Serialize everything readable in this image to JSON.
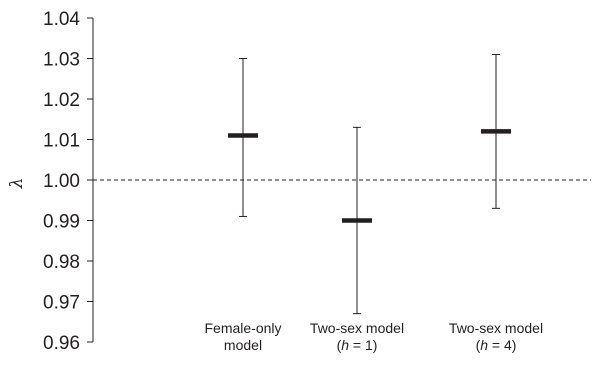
{
  "chart_data": {
    "type": "errorbar",
    "title": "",
    "ylabel": "λ",
    "xlabel": "",
    "ylim": [
      0.96,
      1.04
    ],
    "ytick_step": 0.01,
    "ytick_labels": [
      "0.96",
      "0.97",
      "0.98",
      "0.99",
      "1.00",
      "1.01",
      "1.02",
      "1.03",
      "1.04"
    ],
    "reference_line": {
      "y": 1.0,
      "style": "dashed"
    },
    "categories": [
      {
        "lines": [
          [
            "Female-only"
          ],
          [
            "model"
          ]
        ]
      },
      {
        "lines": [
          [
            "Two-sex model"
          ],
          [
            "(",
            {
              "italic": "h"
            },
            " = 1)"
          ]
        ]
      },
      {
        "lines": [
          [
            "Two-sex model"
          ],
          [
            "(",
            {
              "italic": "h"
            },
            " = 4)"
          ]
        ]
      }
    ],
    "points": [
      {
        "value": 1.011,
        "lower": 0.991,
        "upper": 1.03
      },
      {
        "value": 0.99,
        "lower": 0.967,
        "upper": 1.013
      },
      {
        "value": 1.012,
        "lower": 0.993,
        "upper": 1.031
      }
    ],
    "grid": false,
    "legend": "none",
    "colors": {
      "ink": "#231f20"
    }
  }
}
